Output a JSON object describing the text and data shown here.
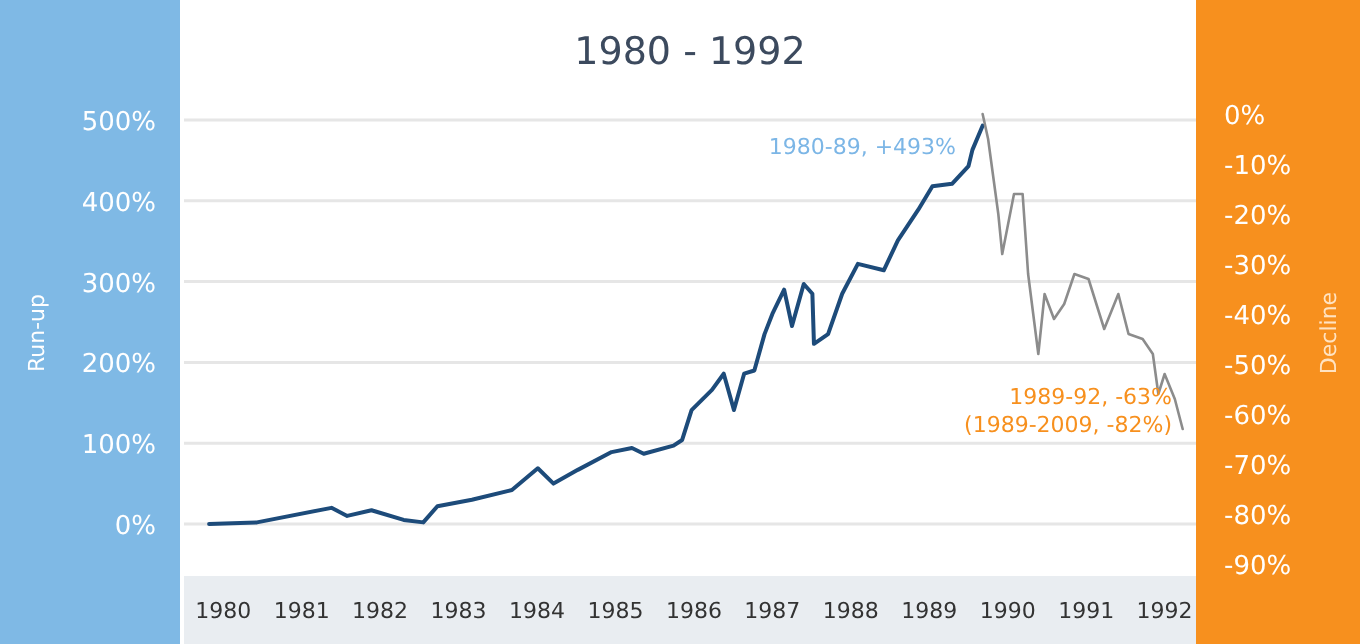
{
  "chart_data": {
    "type": "line",
    "title": "1980 - 1992",
    "ylabel": "Run-up",
    "y2label": "Decline",
    "annotations": [
      "1980-89, +493%",
      "1989-92, -63%\n(1989-2009, -82%)"
    ],
    "xlim": [
      1979.5,
      1992.4
    ],
    "xticks": [
      1980,
      1981,
      1982,
      1983,
      1984,
      1985,
      1986,
      1987,
      1988,
      1989,
      1990,
      1991,
      1992
    ],
    "ylim": [
      0,
      500
    ],
    "yticks": [
      {
        "value": 0,
        "label": "0%"
      },
      {
        "value": 100,
        "label": "100%"
      },
      {
        "value": 200,
        "label": "200%"
      },
      {
        "value": 300,
        "label": "300%"
      },
      {
        "value": 400,
        "label": "400%"
      },
      {
        "value": 500,
        "label": "500%"
      }
    ],
    "y2lim": [
      -90,
      0
    ],
    "y2ticks": [
      {
        "value": 0,
        "label": "0%"
      },
      {
        "value": -10,
        "label": "-10%"
      },
      {
        "value": -20,
        "label": "-20%"
      },
      {
        "value": -30,
        "label": "-30%"
      },
      {
        "value": -40,
        "label": "-40%"
      },
      {
        "value": -50,
        "label": "-50%"
      },
      {
        "value": -60,
        "label": "-60%"
      },
      {
        "value": -70,
        "label": "-70%"
      },
      {
        "value": -80,
        "label": "-80%"
      },
      {
        "value": -90,
        "label": "-90%"
      }
    ],
    "grid": "y",
    "series": [
      {
        "color": "#1d4b7a",
        "x": [
          1979.82,
          1980.43,
          1981.38,
          1981.58,
          1981.89,
          1982.3,
          1982.55,
          1982.73,
          1983.17,
          1983.68,
          1984.01,
          1984.21,
          1984.52,
          1984.95,
          1985.21,
          1985.36,
          1985.74,
          1985.85,
          1985.97,
          1986.23,
          1986.38,
          1986.51,
          1986.64,
          1986.77,
          1986.9,
          1987.0,
          1987.15,
          1987.25,
          1987.4,
          1987.51,
          1987.53,
          1987.71,
          1987.89,
          1988.09,
          1988.42,
          1988.6,
          1988.86,
          1989.04,
          1989.29,
          1989.5,
          1989.55,
          1989.68
        ],
        "values": [
          0,
          2,
          20,
          10,
          17,
          5,
          2,
          22,
          30,
          42,
          69,
          50,
          67,
          89,
          94,
          87,
          97,
          104,
          141,
          166,
          186,
          141,
          186,
          190,
          235,
          260,
          290,
          245,
          297,
          285,
          223,
          235,
          285,
          322,
          314,
          351,
          389,
          418,
          421,
          443,
          463,
          493
        ]
      },
      {
        "color": "#8c8c8c",
        "axis": "y2",
        "x": [
          1989.68,
          1989.75,
          1989.88,
          1989.93,
          1990.08,
          1990.19,
          1990.26,
          1990.39,
          1990.47,
          1990.59,
          1990.72,
          1990.85,
          1991.03,
          1991.23,
          1991.41,
          1991.54,
          1991.72,
          1991.85,
          1991.92,
          1992.0,
          1992.13,
          1992.23
        ],
        "values": [
          0,
          -5,
          -20,
          -28,
          -16,
          -16,
          -32,
          -48,
          -36,
          -41,
          -38,
          -32,
          -33,
          -43,
          -36,
          -44,
          -45,
          -48,
          -56,
          -52,
          -57,
          -63
        ]
      }
    ]
  }
}
